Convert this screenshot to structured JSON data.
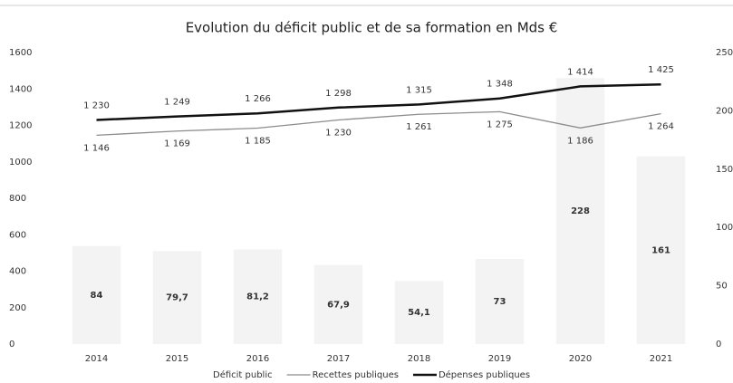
{
  "chart_data": {
    "type": "bar-line",
    "title": "Evolution du déficit public et de sa formation en Mds €",
    "categories": [
      "2014",
      "2015",
      "2016",
      "2017",
      "2018",
      "2019",
      "2020",
      "2021"
    ],
    "ylim": [
      0,
      1600
    ],
    "yticks": [
      0,
      200,
      400,
      600,
      800,
      1000,
      1200,
      1400,
      1600
    ],
    "y2lim": [
      0,
      250
    ],
    "y2ticks": [
      0,
      50,
      100,
      150,
      200,
      250
    ],
    "grid": false,
    "legend": "bottom",
    "series": [
      {
        "name": "Déficit public",
        "type": "bar",
        "axis": "y2",
        "color": "#f3f3f3",
        "values": [
          84,
          79.7,
          81.2,
          67.9,
          54.1,
          73,
          228,
          161
        ],
        "value_labels": [
          "84",
          "79,7",
          "81,2",
          "67,9",
          "54,1",
          "73",
          "228",
          "161"
        ]
      },
      {
        "name": "Recettes publiques",
        "type": "line",
        "color": "#8c8c8c",
        "values": [
          1146,
          1169,
          1185,
          1230,
          1261,
          1275,
          1186,
          1264
        ],
        "value_labels": [
          "1 146",
          "1 169",
          "1 185",
          "1 230",
          "1 261",
          "1 275",
          "1 186",
          "1 264"
        ]
      },
      {
        "name": "Dépenses publiques",
        "type": "line",
        "color": "#111111",
        "values": [
          1230,
          1249,
          1266,
          1298,
          1315,
          1348,
          1414,
          1425
        ],
        "value_labels": [
          "1 230",
          "1 249",
          "1 266",
          "1 298",
          "1 315",
          "1 348",
          "1 414",
          "1 425"
        ]
      }
    ]
  }
}
